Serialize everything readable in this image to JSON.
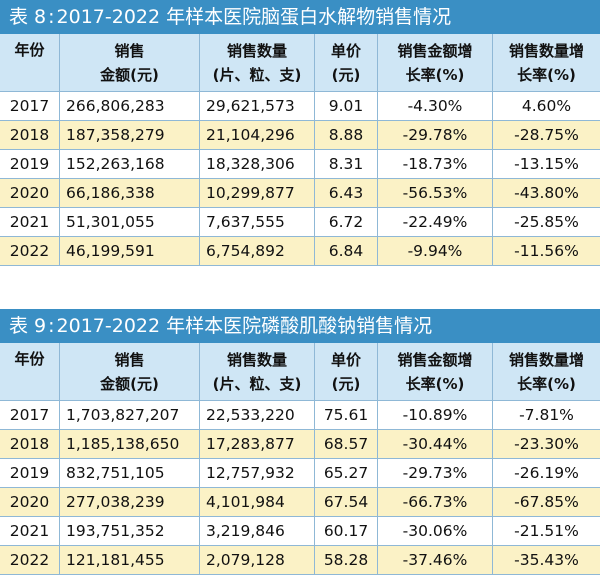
{
  "headers": {
    "year": "年份",
    "amount": [
      "销售",
      "金额(元)"
    ],
    "qty": [
      "销售数量",
      "(片、粒、支)"
    ],
    "price": [
      "单价",
      "(元)"
    ],
    "amount_growth": [
      "销售金额增",
      "长率(%)"
    ],
    "qty_growth": [
      "销售数量增",
      "长率(%)"
    ]
  },
  "table1": {
    "label": "表 8",
    "title_text": "2017-2022 年样本医院脑蛋白水解物销售情况",
    "rows": [
      [
        "2017",
        "266,806,283",
        "29,621,573",
        "9.01",
        "-4.30%",
        "4.60%"
      ],
      [
        "2018",
        "187,358,279",
        "21,104,296",
        "8.88",
        "-29.78%",
        "-28.75%"
      ],
      [
        "2019",
        "152,263,168",
        "18,328,306",
        "8.31",
        "-18.73%",
        "-13.15%"
      ],
      [
        "2020",
        "66,186,338",
        "10,299,877",
        "6.43",
        "-56.53%",
        "-43.80%"
      ],
      [
        "2021",
        "51,301,055",
        "7,637,555",
        "6.72",
        "-22.49%",
        "-25.85%"
      ],
      [
        "2022",
        "46,199,591",
        "6,754,892",
        "6.84",
        "-9.94%",
        "-11.56%"
      ]
    ]
  },
  "table2": {
    "label": "表 9",
    "title_text": "2017-2022 年样本医院磷酸肌酸钠销售情况",
    "rows": [
      [
        "2017",
        "1,703,827,207",
        "22,533,220",
        "75.61",
        "-10.89%",
        "-7.81%"
      ],
      [
        "2018",
        "1,185,138,650",
        "17,283,877",
        "68.57",
        "-30.44%",
        "-23.30%"
      ],
      [
        "2019",
        "832,751,105",
        "12,757,932",
        "65.27",
        "-29.73%",
        "-26.19%"
      ],
      [
        "2020",
        "277,038,239",
        "4,101,984",
        "67.54",
        "-66.73%",
        "-67.85%"
      ],
      [
        "2021",
        "193,751,352",
        "3,219,846",
        "60.17",
        "-30.06%",
        "-21.51%"
      ],
      [
        "2022",
        "121,181,455",
        "2,079,128",
        "58.28",
        "-37.46%",
        "-35.43%"
      ]
    ]
  }
}
